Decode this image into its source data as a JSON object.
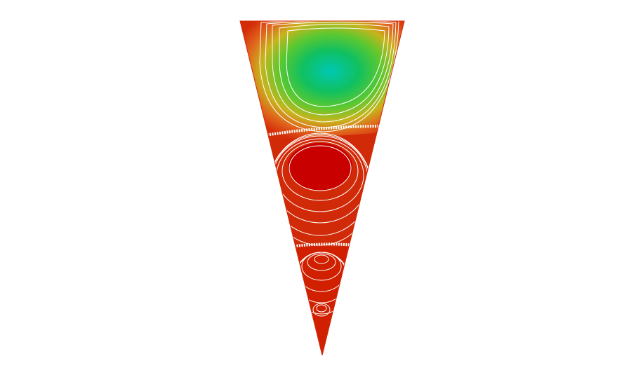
{
  "figure": {
    "kind": "streamline-contour-plot",
    "shape": "inverted-triangle-cavity",
    "background": "#ffffff",
    "streamline_color": "#ffffff",
    "cells": [
      {
        "name": "upper-cell",
        "colors": [
          "#00c8b4",
          "#10c060",
          "#5cc830",
          "#c8b41c",
          "#e0641c",
          "#d42c08"
        ]
      },
      {
        "name": "middle-cell",
        "colors": [
          "#c80000",
          "#cc1400",
          "#d02a08"
        ]
      },
      {
        "name": "lower-cell",
        "colors": [
          "#d02000",
          "#d03008"
        ]
      }
    ],
    "fill_color": "#d02a08"
  }
}
